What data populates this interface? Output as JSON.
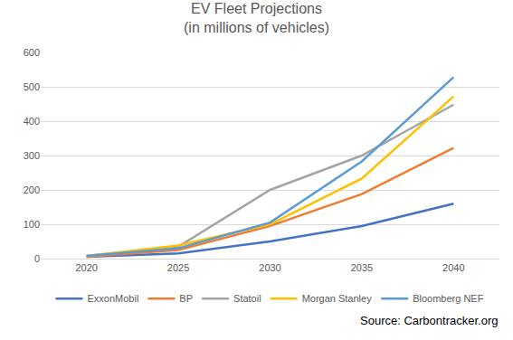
{
  "chart_data": {
    "type": "line",
    "title": "EV Fleet Projections",
    "subtitle": "(in millions of vehicles)",
    "source": "Source: Carbontracker.org",
    "categories": [
      "2020",
      "2025",
      "2030",
      "2035",
      "2040"
    ],
    "series": [
      {
        "name": "ExxonMobil",
        "color": "#4472c4",
        "values": [
          5,
          15,
          50,
          95,
          160
        ]
      },
      {
        "name": "BP",
        "color": "#ed7d31",
        "values": [
          5,
          25,
          95,
          188,
          322
        ]
      },
      {
        "name": "Statoil",
        "color": "#a5a5a5",
        "values": [
          8,
          35,
          200,
          300,
          448
        ]
      },
      {
        "name": "Morgan Stanley",
        "color": "#ffc000",
        "values": [
          8,
          38,
          100,
          233,
          472
        ]
      },
      {
        "name": "Bloomberg NEF",
        "color": "#5b9bd5",
        "values": [
          8,
          30,
          105,
          283,
          528
        ]
      }
    ],
    "ylim": [
      0,
      600
    ],
    "yticks": [
      0,
      100,
      200,
      300,
      400,
      500,
      600
    ],
    "grid": true,
    "legend": "bottom"
  }
}
